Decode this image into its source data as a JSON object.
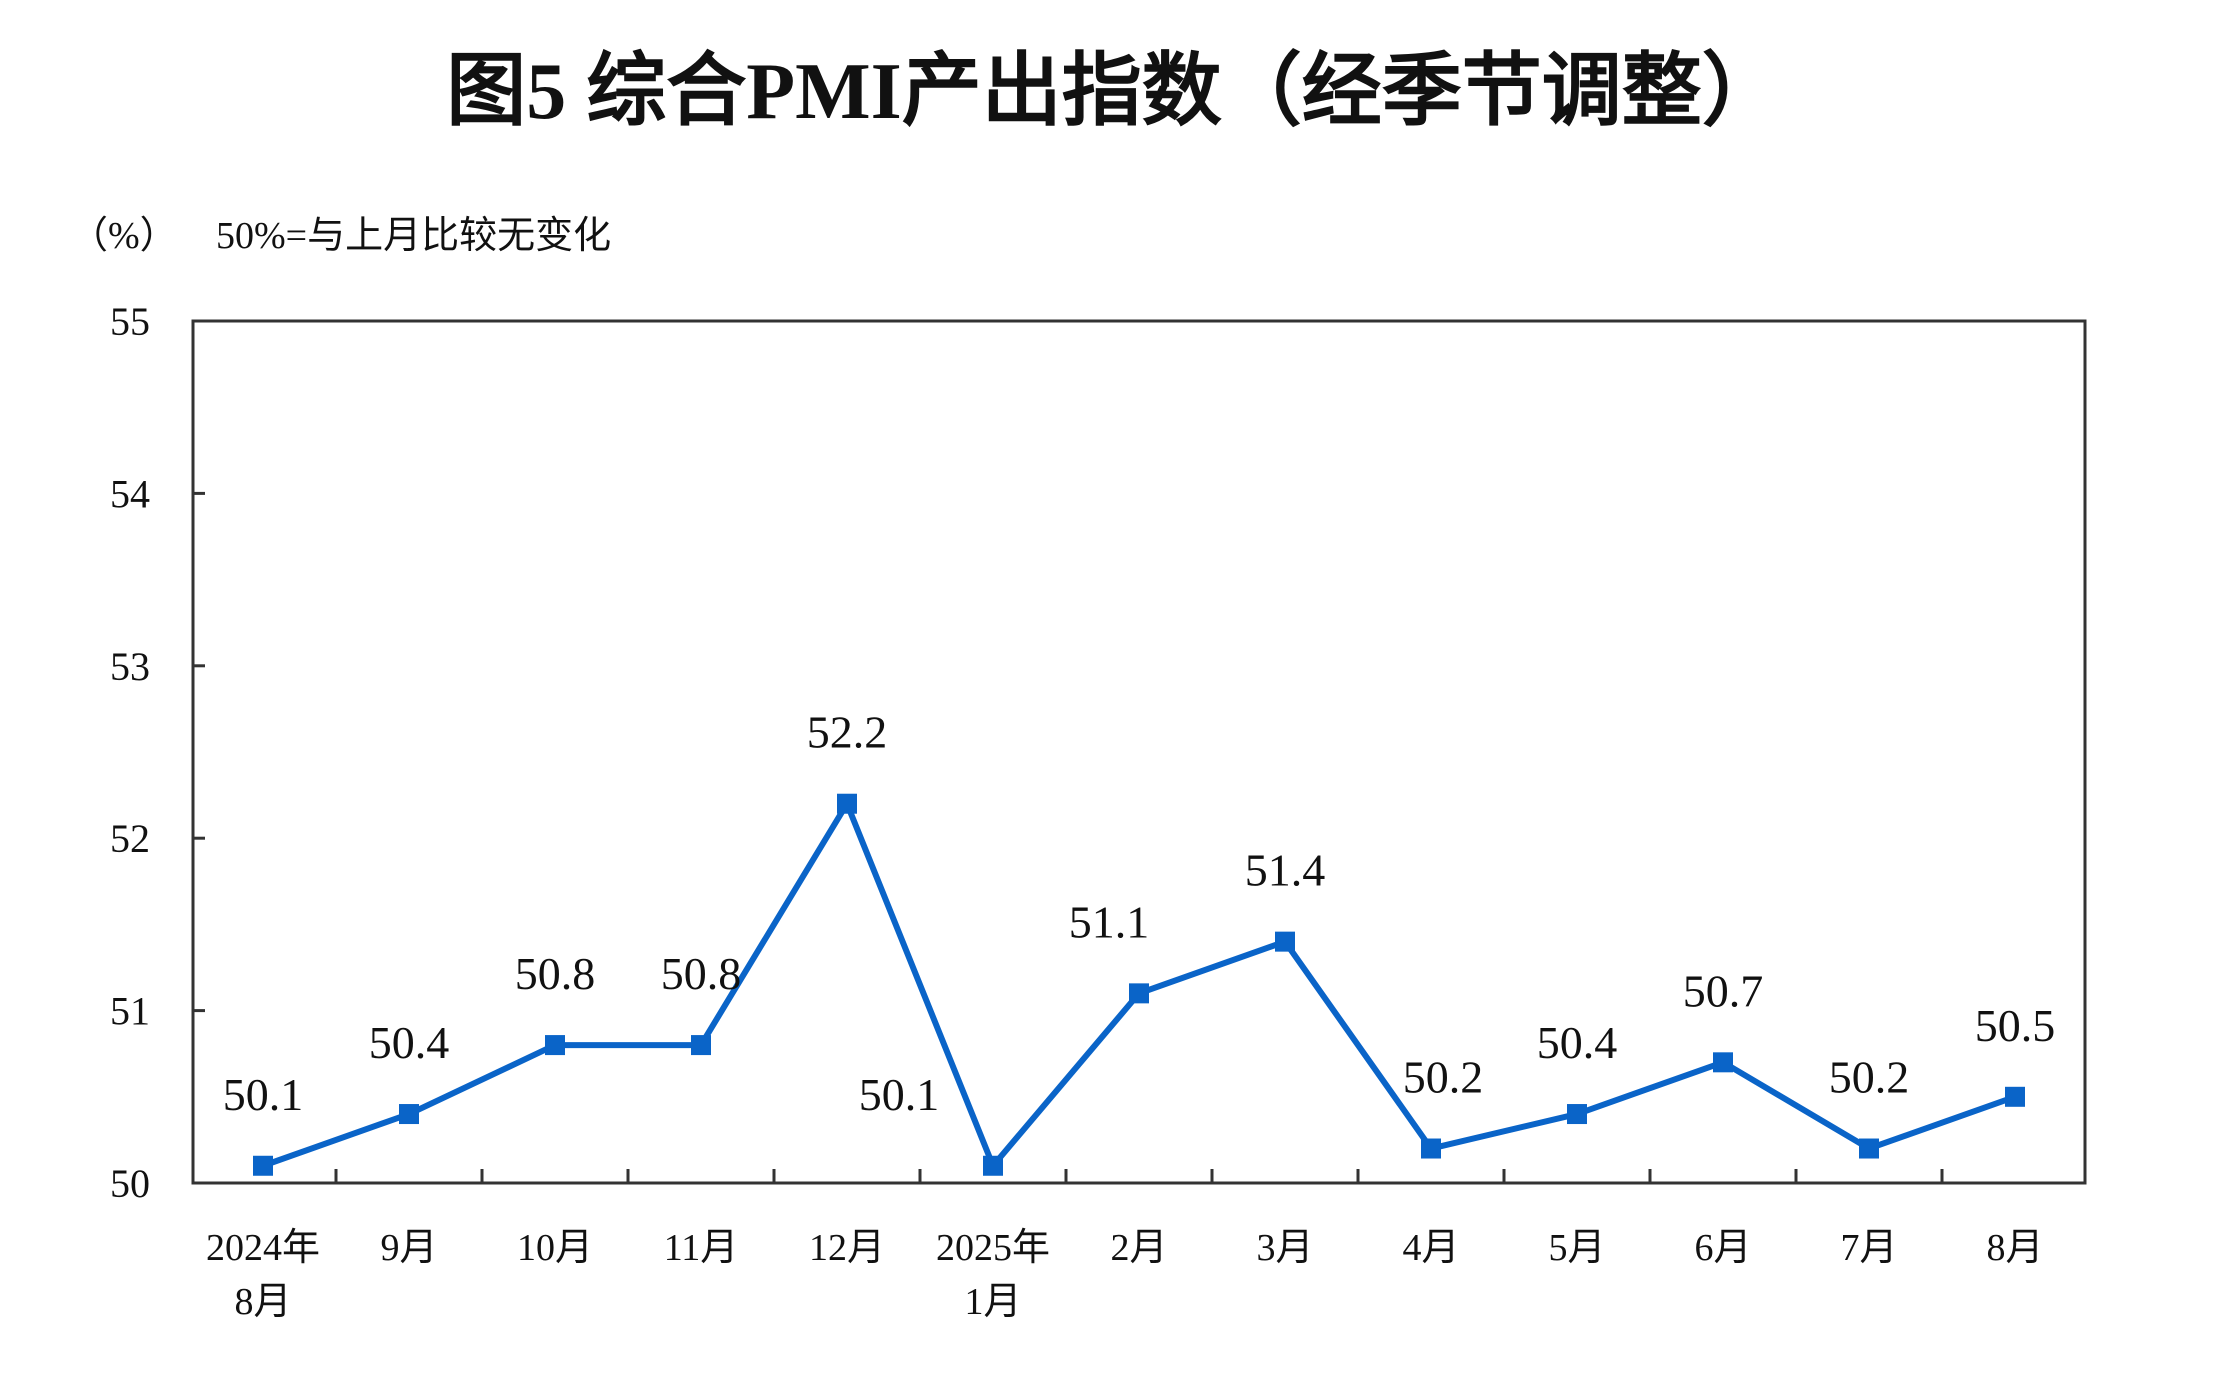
{
  "chart_data": {
    "type": "line",
    "title": "图5  综合PMI产出指数（经季节调整）",
    "unit_label": "（%）",
    "note": "50%=与上月比较无变化",
    "categories": [
      [
        "2024年",
        "8月"
      ],
      [
        "9月"
      ],
      [
        "10月"
      ],
      [
        "11月"
      ],
      [
        "12月"
      ],
      [
        "2025年",
        "1月"
      ],
      [
        "2月"
      ],
      [
        "3月"
      ],
      [
        "4月"
      ],
      [
        "5月"
      ],
      [
        "6月"
      ],
      [
        "7月"
      ],
      [
        "8月"
      ]
    ],
    "values": [
      50.1,
      50.4,
      50.8,
      50.8,
      52.2,
      50.1,
      51.1,
      51.4,
      50.2,
      50.4,
      50.7,
      50.2,
      50.5
    ],
    "value_labels": [
      "50.1",
      "50.4",
      "50.8",
      "50.8",
      "52.2",
      "50.1",
      "51.1",
      "51.4",
      "50.2",
      "50.4",
      "50.7",
      "50.2",
      "50.5"
    ],
    "ylim": [
      50,
      55
    ],
    "yticks": [
      "50",
      "51",
      "52",
      "53",
      "54",
      "55"
    ],
    "grid": false,
    "line_color": "#0a64c8",
    "marker": "square"
  }
}
